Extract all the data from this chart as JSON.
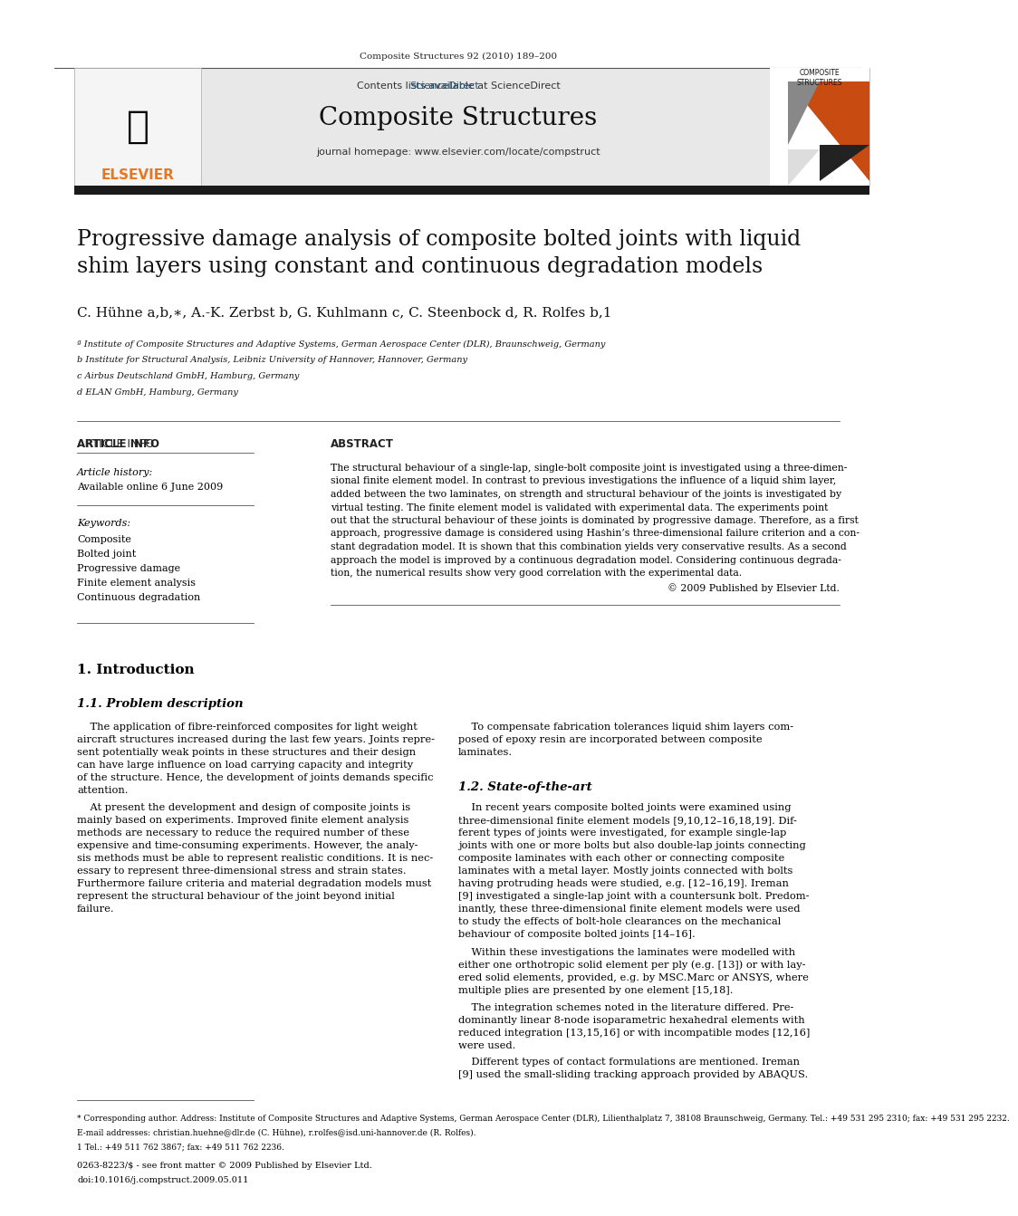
{
  "journal_line": "Composite Structures 92 (2010) 189–200",
  "contents_line": "Contents lists available at ScienceDirect",
  "sciencedirect_color": "#1a5276",
  "journal_name": "Composite Structures",
  "journal_homepage": "journal homepage: www.elsevier.com/locate/compstruct",
  "header_bg": "#e8e8e8",
  "thick_bar_color": "#1a1a1a",
  "elsevier_color": "#e87722",
  "article_title_line1": "Progressive damage analysis of composite bolted joints with liquid",
  "article_title_line2": "shim layers using constant and continuous degradation models",
  "authors": "C. Hühne a,b,∗, A.-K. Zerbst b, G. Kuhlmann c, C. Steenbock d, R. Rolfes b,1",
  "affil_a": "ª Institute of Composite Structures and Adaptive Systems, German Aerospace Center (DLR), Braunschweig, Germany",
  "affil_b": "b Institute for Structural Analysis, Leibniz University of Hannover, Hannover, Germany",
  "affil_c": "c Airbus Deutschland GmbH, Hamburg, Germany",
  "affil_d": "d ELAN GmbH, Hamburg, Germany",
  "article_info_header": "ARTICLE INFO",
  "abstract_header": "ABSTRACT",
  "article_history_label": "Article history:",
  "available_online": "Available online 6 June 2009",
  "keywords_label": "Keywords:",
  "keywords": [
    "Composite",
    "Bolted joint",
    "Progressive damage",
    "Finite element analysis",
    "Continuous degradation"
  ],
  "abstract_text": "The structural behaviour of a single-lap, single-bolt composite joint is investigated using a three-dimensional finite element model. In contrast to previous investigations the influence of a liquid shim layer, added between the two laminates, on strength and structural behaviour of the joints is investigated by virtual testing. The finite element model is validated with experimental data. The experiments point out that the structural behaviour of these joints is dominated by progressive damage. Therefore, as a first approach, progressive damage is considered using Hashin’s three-dimensional failure criterion and a constant degradation model. It is shown that this combination yields very conservative results. As a second approach the model is improved by a continuous degradation model. Considering continuous degradation, the numerical results show very good correlation with the experimental data.",
  "copyright_line": "© 2009 Published by Elsevier Ltd.",
  "intro_header": "1. Introduction",
  "problem_header": "1.1. Problem description",
  "intro_para1": "The application of fibre-reinforced composites for light weight aircraft structures increased during the last few years. Joints represent potentially weak points in these structures and their design can have large influence on load carrying capacity and integrity of the structure. Hence, the development of joints demands specific attention.",
  "intro_para2": "At present the development and design of composite joints is mainly based on experiments. Improved finite element analysis methods are necessary to reduce the required number of these expensive and time-consuming experiments. However, the analysis methods must be able to represent realistic conditions. It is necessary to represent three-dimensional stress and strain states. Furthermore failure criteria and material degradation models must represent the structural behaviour of the joint beyond initial failure.",
  "right_col_para1": "To compensate fabrication tolerances liquid shim layers composed of epoxy resin are incorporated between composite laminates.",
  "state_art_header": "1.2. State-of-the-art",
  "state_art_para": "In recent years composite bolted joints were examined using three-dimensional finite element models [9,10,12–16,18,19]. Different types of joints were investigated, for example single-lap joints with one or more bolts but also double-lap joints connecting composite laminates with each other or connecting composite laminates with a metal layer. Mostly joints connected with bolts having protruding heads were studied, e.g. [12–16,19]. Ireman [9] investigated a single-lap joint with a countersunk bolt. Predominantly, these three-dimensional finite element models were used to study the effects of bolt-hole clearances on the mechanical behaviour of composite bolted joints [14–16].",
  "state_art_para2": "Within these investigations the laminates were modelled with either one orthotropic solid element per ply (e.g. [13]) or with layered solid elements, provided, e.g. by MSC.Marc or ANSYS, where multiple plies are presented by one element [15,18].",
  "state_art_para3": "The integration schemes noted in the literature differed. Predominantly linear 8-node isoparametric hexahedral elements with reduced integration [13,15,16] or with incompatible modes [12,16] were used.",
  "state_art_para4": "Different types of contact formulations are mentioned. Ireman [9] used the small-sliding tracking approach provided by ABAQUS.",
  "footnote1": "* Corresponding author. Address: Institute of Composite Structures and Adaptive Systems, German Aerospace Center (DLR), Lilienthalplatz 7, 38108 Braunschweig, Germany. Tel.: +49 531 295 2310; fax: +49 531 295 2232.",
  "footnote2": "E-mail addresses: christian.huehne@dlr.de (C. Hühne), r.rolfes@isd.uni-hannover.de (R. Rolfes).",
  "footnote3": "1 Tel.: +49 511 762 3867; fax: +49 511 762 2236.",
  "footer_line1": "0263-8223/$ - see front matter © 2009 Published by Elsevier Ltd.",
  "footer_line2": "doi:10.1016/j.compstruct.2009.05.011",
  "bg_color": "#ffffff",
  "text_color": "#000000"
}
